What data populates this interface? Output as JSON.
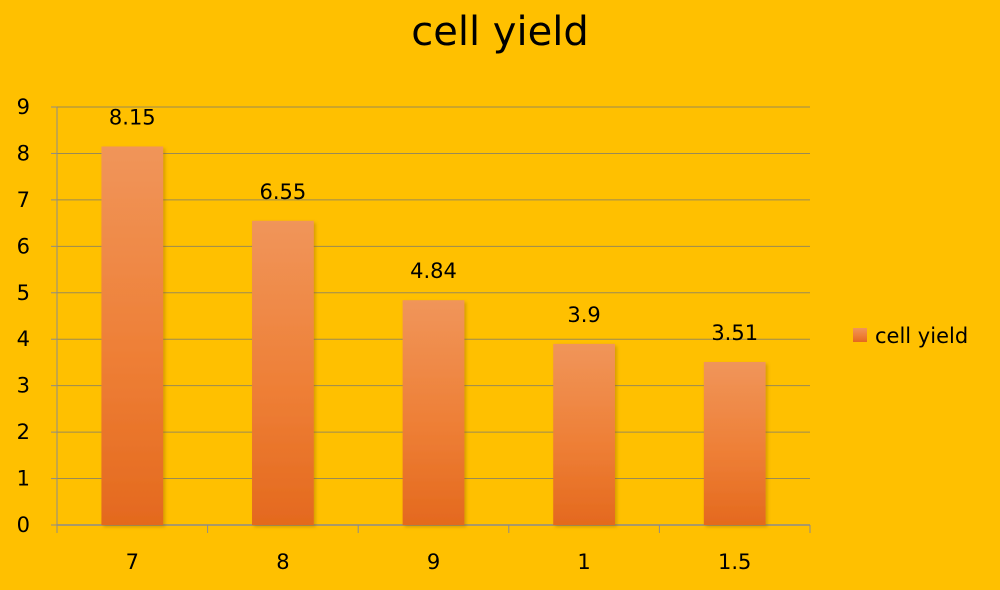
{
  "chart_data": {
    "type": "bar",
    "title": "cell yield",
    "xlabel": "",
    "ylabel": "",
    "categories": [
      "7",
      "8",
      "9",
      "1",
      "1.5"
    ],
    "series": [
      {
        "name": "cell yield",
        "values": [
          8.15,
          6.55,
          4.84,
          3.9,
          3.51
        ],
        "data_labels": [
          "8.15",
          "6.55",
          "4.84",
          "3.9",
          "3.51"
        ]
      }
    ],
    "ylim": [
      0,
      9
    ],
    "y_ticks": [
      "0",
      "1",
      "2",
      "3",
      "4",
      "5",
      "6",
      "7",
      "8",
      "9"
    ],
    "grid": true,
    "legend_position": "right",
    "colors": {
      "background": "#FFC000",
      "bar_top": "#F0955A",
      "bar_bottom": "#E4691E",
      "gridline": "#9A8A55",
      "axis": "#8C8C8C"
    }
  }
}
